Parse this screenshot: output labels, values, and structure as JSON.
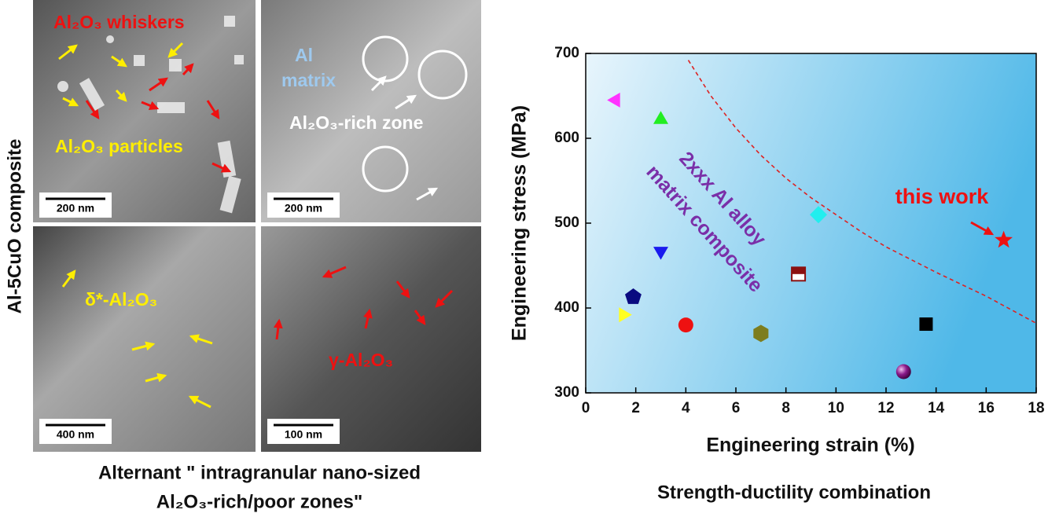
{
  "panels": {
    "side_label": "Al-5CuO composite",
    "tiles": [
      {
        "labels": [
          "Al₂O₃ whiskers",
          "Al₂O₃ particles"
        ],
        "scale_bar": "200 nm"
      },
      {
        "labels": [
          "Al",
          "matrix",
          "Al₂O₃-rich zone"
        ],
        "scale_bar": "200 nm"
      },
      {
        "labels": [
          "δ*-Al₂O₃"
        ],
        "scale_bar": "400 nm"
      },
      {
        "labels": [
          "γ-Al₂O₃"
        ],
        "scale_bar": "100 nm"
      }
    ],
    "caption": [
      "Alternant \" intragranular nano-sized",
      "Al₂O₃-rich/poor zones\""
    ]
  },
  "chart_data": {
    "type": "scatter",
    "caption": "Strength-ductility combination",
    "x_label": "Engineering strain (%)",
    "y_label": "Engineering stress (MPa)",
    "xlim": [
      0,
      18
    ],
    "ylim": [
      300,
      700
    ],
    "xticks": [
      0,
      2,
      4,
      6,
      8,
      10,
      12,
      14,
      16,
      18
    ],
    "yticks": [
      300,
      400,
      500,
      600,
      700
    ],
    "points": [
      {
        "x": 1.2,
        "y": 645,
        "marker": "triangle-left",
        "color": "#ff33ff"
      },
      {
        "x": 3.0,
        "y": 622,
        "marker": "triangle-up",
        "color": "#22ee22"
      },
      {
        "x": 3.0,
        "y": 467,
        "marker": "triangle-down",
        "color": "#1a1aee"
      },
      {
        "x": 1.9,
        "y": 413,
        "marker": "pentagon",
        "color": "#0a0a80"
      },
      {
        "x": 1.5,
        "y": 392,
        "marker": "triangle-right",
        "color": "#ffff22"
      },
      {
        "x": 4.0,
        "y": 380,
        "marker": "circle",
        "color": "#ee1111"
      },
      {
        "x": 7.0,
        "y": 370,
        "marker": "hexagon",
        "color": "#7d7d1e"
      },
      {
        "x": 8.5,
        "y": 440,
        "marker": "half-square",
        "color": "#8b1010"
      },
      {
        "x": 9.3,
        "y": 510,
        "marker": "diamond",
        "color": "#22eeee"
      },
      {
        "x": 12.7,
        "y": 325,
        "marker": "sphere",
        "color": "#8a1a8a"
      },
      {
        "x": 13.6,
        "y": 381,
        "marker": "square",
        "color": "#000000"
      },
      {
        "x": 16.7,
        "y": 480,
        "marker": "star",
        "color": "#ee1111"
      }
    ],
    "curve": {
      "x": [
        4.1,
        5,
        6,
        7,
        8,
        9,
        10,
        11,
        12,
        13,
        14,
        15,
        16,
        17,
        18
      ],
      "y": [
        692,
        650,
        612,
        580,
        553,
        530,
        510,
        490,
        472,
        457,
        442,
        428,
        414,
        398,
        382
      ],
      "color": "#dd2222"
    },
    "annotations": [
      "this work",
      "2xxx Al alloy",
      "matrix composite"
    ]
  }
}
